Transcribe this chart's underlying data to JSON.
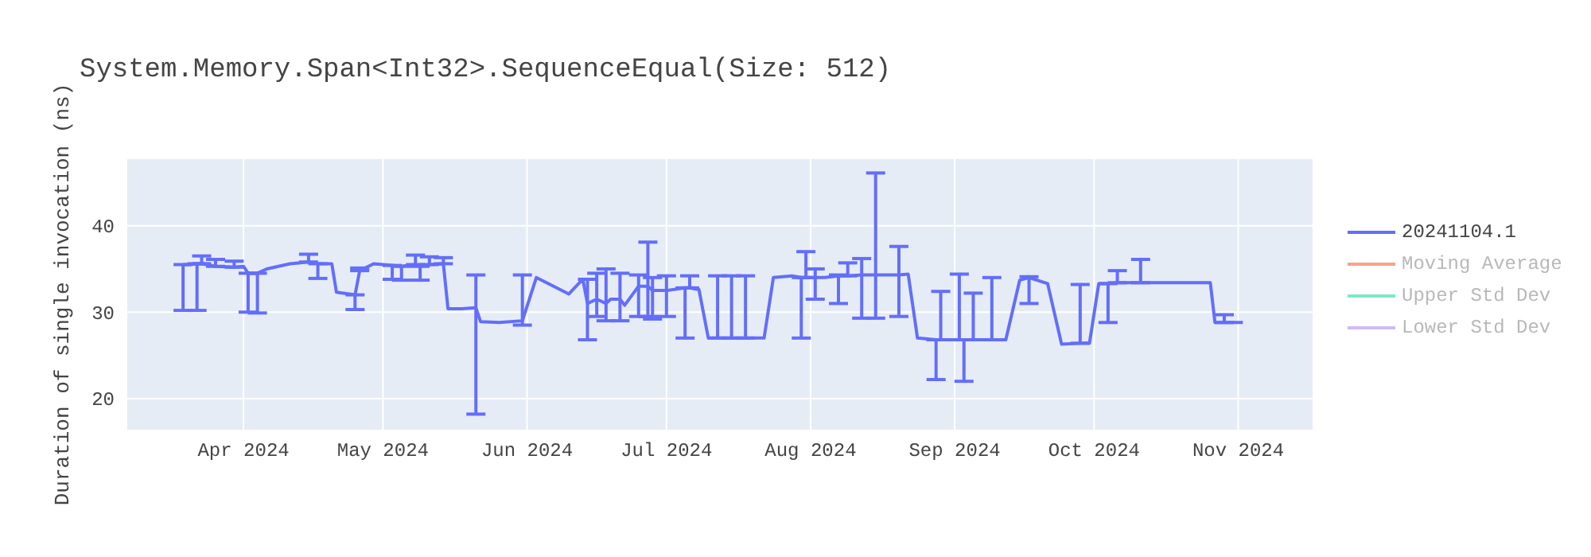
{
  "chart_data": {
    "type": "line",
    "title": "System.Memory.Span<Int32>.SequenceEqual(Size: 512)",
    "ylabel": "Duration of single invocation (ns)",
    "x": [
      "2024-03-19",
      "2024-03-20",
      "2024-03-22",
      "2024-03-23",
      "2024-03-26",
      "2024-03-30",
      "2024-04-01",
      "2024-04-02",
      "2024-04-04",
      "2024-04-06",
      "2024-04-11",
      "2024-04-15",
      "2024-04-17",
      "2024-04-20",
      "2024-04-21",
      "2024-04-25",
      "2024-04-26",
      "2024-04-29",
      "2024-05-03",
      "2024-05-05",
      "2024-05-08",
      "2024-05-09",
      "2024-05-11",
      "2024-05-14",
      "2024-05-15",
      "2024-05-18",
      "2024-05-21",
      "2024-05-22",
      "2024-05-26",
      "2024-05-31",
      "2024-06-03",
      "2024-06-10",
      "2024-06-13",
      "2024-06-14",
      "2024-06-16",
      "2024-06-18",
      "2024-06-19",
      "2024-06-21",
      "2024-06-22",
      "2024-06-25",
      "2024-06-27",
      "2024-06-28",
      "2024-07-01",
      "2024-07-05",
      "2024-07-06",
      "2024-07-08",
      "2024-07-10",
      "2024-07-12",
      "2024-07-15",
      "2024-07-18",
      "2024-07-19",
      "2024-07-22",
      "2024-07-24",
      "2024-07-28",
      "2024-07-30",
      "2024-07-31",
      "2024-08-02",
      "2024-08-04",
      "2024-08-07",
      "2024-08-09",
      "2024-08-12",
      "2024-08-15",
      "2024-08-17",
      "2024-08-20",
      "2024-08-22",
      "2024-08-24",
      "2024-08-28",
      "2024-08-29",
      "2024-09-02",
      "2024-09-03",
      "2024-09-05",
      "2024-09-09",
      "2024-09-12",
      "2024-09-15",
      "2024-09-17",
      "2024-09-21",
      "2024-09-24",
      "2024-09-28",
      "2024-09-30",
      "2024-10-02",
      "2024-10-04",
      "2024-10-06",
      "2024-10-11",
      "2024-10-18",
      "2024-10-26",
      "2024-10-27",
      "2024-10-29",
      "2024-11-02"
    ],
    "series": [
      {
        "name": "20241104.1",
        "color": "#636efa",
        "values": [
          35.5,
          35.5,
          35.6,
          35.6,
          35.3,
          35.2,
          35.3,
          34.5,
          34.5,
          35.0,
          35.6,
          35.8,
          35.6,
          35.6,
          32.3,
          32.0,
          34.8,
          35.6,
          35.4,
          35.3,
          35.5,
          35.3,
          35.5,
          35.6,
          30.4,
          30.4,
          30.5,
          28.9,
          28.8,
          29.0,
          34.0,
          32.1,
          33.8,
          31.0,
          31.5,
          31.0,
          31.5,
          31.5,
          30.8,
          33.0,
          33.0,
          32.5,
          32.5,
          32.8,
          32.8,
          32.6,
          27.0,
          27.0,
          27.0,
          27.0,
          27.0,
          27.0,
          34.0,
          34.2,
          34.0,
          34.0,
          34.0,
          34.0,
          34.2,
          34.2,
          34.3,
          34.3,
          34.3,
          34.3,
          34.4,
          27.0,
          26.8,
          26.8,
          26.8,
          26.8,
          26.8,
          26.8,
          26.8,
          33.7,
          34.0,
          33.3,
          26.3,
          26.4,
          26.4,
          33.3,
          33.3,
          33.4,
          33.4,
          33.4,
          33.4,
          28.8,
          28.8,
          28.8
        ],
        "errors": [
          [
            30.2,
            35.5
          ],
          null,
          [
            30.2,
            35.6
          ],
          [
            35.6,
            36.5
          ],
          [
            35.3,
            36.1
          ],
          [
            35.2,
            35.9
          ],
          null,
          [
            30.0,
            34.5
          ],
          [
            29.9,
            34.5
          ],
          null,
          null,
          [
            35.8,
            36.7
          ],
          [
            33.9,
            35.6
          ],
          null,
          null,
          [
            30.3,
            32.0
          ],
          [
            34.8,
            35.1
          ],
          null,
          [
            33.8,
            35.4
          ],
          [
            33.7,
            35.3
          ],
          [
            35.5,
            36.6
          ],
          [
            33.7,
            35.3
          ],
          [
            35.5,
            36.4
          ],
          [
            35.6,
            36.3
          ],
          null,
          null,
          [
            18.2,
            34.3
          ],
          null,
          null,
          [
            28.5,
            34.3
          ],
          null,
          null,
          null,
          [
            26.8,
            33.8
          ],
          [
            29.5,
            34.5
          ],
          [
            29.0,
            35.0
          ],
          null,
          [
            29.0,
            34.5
          ],
          null,
          [
            29.5,
            34.3
          ],
          [
            29.5,
            38.1
          ],
          [
            29.2,
            34.0
          ],
          [
            29.5,
            34.2
          ],
          [
            27.0,
            32.8
          ],
          [
            32.8,
            34.2
          ],
          null,
          null,
          [
            27.0,
            34.2
          ],
          [
            27.0,
            34.2
          ],
          [
            27.0,
            34.2
          ],
          null,
          null,
          null,
          null,
          [
            27.0,
            34.0
          ],
          [
            34.0,
            37.0
          ],
          [
            31.5,
            35.0
          ],
          null,
          [
            31.0,
            34.3
          ],
          [
            34.2,
            35.7
          ],
          [
            29.3,
            36.2
          ],
          [
            29.3,
            46.1
          ],
          null,
          [
            29.5,
            37.6
          ],
          null,
          null,
          [
            22.2,
            26.8
          ],
          [
            26.8,
            32.4
          ],
          [
            26.8,
            34.4
          ],
          [
            22.0,
            26.8
          ],
          [
            26.8,
            32.2
          ],
          [
            26.8,
            34.0
          ],
          null,
          null,
          [
            31.0,
            34.1
          ],
          null,
          null,
          [
            26.4,
            33.2
          ],
          null,
          null,
          [
            28.8,
            33.3
          ],
          [
            33.4,
            34.8
          ],
          [
            33.4,
            36.1
          ],
          null,
          null,
          null,
          [
            28.8,
            29.7
          ],
          null
        ]
      },
      {
        "name": "Moving Average",
        "color": "#f5a48f",
        "values": [
          null,
          null,
          null,
          null,
          null,
          null,
          null,
          null,
          null,
          null,
          null,
          null,
          null,
          null,
          null,
          null,
          null,
          null,
          null,
          null,
          null,
          null,
          null,
          null,
          null,
          null,
          null,
          null,
          null,
          null,
          null,
          null,
          null,
          null,
          null,
          null,
          null,
          null,
          null,
          null,
          null,
          null,
          null,
          null,
          null,
          null,
          null,
          null,
          null,
          null,
          null,
          null,
          null,
          null,
          null,
          null,
          null,
          null,
          null,
          null,
          null,
          null,
          null,
          null,
          null,
          null,
          null,
          null,
          null,
          null,
          null,
          null,
          null,
          null,
          null,
          null,
          null,
          null,
          null,
          null,
          null,
          null,
          null,
          null,
          null,
          null,
          null,
          null
        ]
      },
      {
        "name": "Upper Std Dev",
        "color": "#7de8c8",
        "values": [
          null,
          null,
          null,
          null,
          null,
          null,
          null,
          null,
          null,
          null,
          null,
          null,
          null,
          null,
          null,
          null,
          null,
          null,
          null,
          null,
          null,
          null,
          null,
          null,
          null,
          null,
          null,
          null,
          null,
          null,
          null,
          null,
          null,
          null,
          null,
          null,
          null,
          null,
          null,
          null,
          null,
          null,
          null,
          null,
          null,
          null,
          null,
          null,
          null,
          null,
          null,
          null,
          null,
          null,
          null,
          null,
          null,
          null,
          null,
          null,
          null,
          null,
          null,
          null,
          null,
          null,
          null,
          null,
          null,
          null,
          null,
          null,
          null,
          null,
          null,
          null,
          null,
          null,
          null,
          null,
          null,
          null,
          null,
          null,
          null,
          null,
          null,
          null
        ]
      },
      {
        "name": "Lower Std Dev",
        "color": "#d3b8f8",
        "values": [
          null,
          null,
          null,
          null,
          null,
          null,
          null,
          null,
          null,
          null,
          null,
          null,
          null,
          null,
          null,
          null,
          null,
          null,
          null,
          null,
          null,
          null,
          null,
          null,
          null,
          null,
          null,
          null,
          null,
          null,
          null,
          null,
          null,
          null,
          null,
          null,
          null,
          null,
          null,
          null,
          null,
          null,
          null,
          null,
          null,
          null,
          null,
          null,
          null,
          null,
          null,
          null,
          null,
          null,
          null,
          null,
          null,
          null,
          null,
          null,
          null,
          null,
          null,
          null,
          null,
          null,
          null,
          null,
          null,
          null,
          null,
          null,
          null,
          null,
          null,
          null,
          null,
          null,
          null,
          null,
          null,
          null,
          null,
          null,
          null,
          null,
          null,
          null
        ]
      }
    ],
    "xlim": [
      "2024-03-07",
      "2024-11-17"
    ],
    "xticks": [
      {
        "value": "2024-04-01",
        "label": "Apr 2024"
      },
      {
        "value": "2024-05-01",
        "label": "May 2024"
      },
      {
        "value": "2024-06-01",
        "label": "Jun 2024"
      },
      {
        "value": "2024-07-01",
        "label": "Jul 2024"
      },
      {
        "value": "2024-08-01",
        "label": "Aug 2024"
      },
      {
        "value": "2024-09-01",
        "label": "Sep 2024"
      },
      {
        "value": "2024-10-01",
        "label": "Oct 2024"
      },
      {
        "value": "2024-11-01",
        "label": "Nov 2024"
      }
    ],
    "ylim": [
      16.4,
      47.7
    ],
    "yticks": [
      20,
      30,
      40
    ],
    "grid": true,
    "legend": "top right",
    "marker": "none",
    "line_style": "solid"
  }
}
